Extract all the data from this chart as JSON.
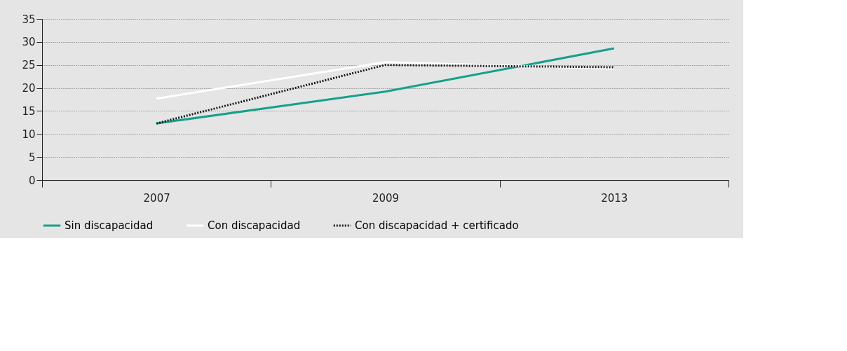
{
  "chart_data": {
    "type": "line",
    "categories": [
      "2007",
      "2009",
      "2013"
    ],
    "series": [
      {
        "name": "Sin discapacidad",
        "color": "#16a08a",
        "line_style": "solid",
        "values": [
          12.3,
          19.2,
          28.6
        ]
      },
      {
        "name": "Con discapacidad",
        "color": "#ffffff",
        "line_style": "solid",
        "values": [
          17.7,
          25.6,
          24.2
        ]
      },
      {
        "name": "Con discapacidad + certificado",
        "color": "#1a1a1a",
        "line_style": "dotted",
        "values": [
          12.3,
          25.0,
          24.5
        ]
      }
    ],
    "ylim": [
      0,
      35
    ],
    "yticks": [
      0,
      5,
      10,
      15,
      20,
      25,
      30,
      35
    ],
    "grid": "y",
    "legend": "bottom",
    "marker": "none"
  }
}
